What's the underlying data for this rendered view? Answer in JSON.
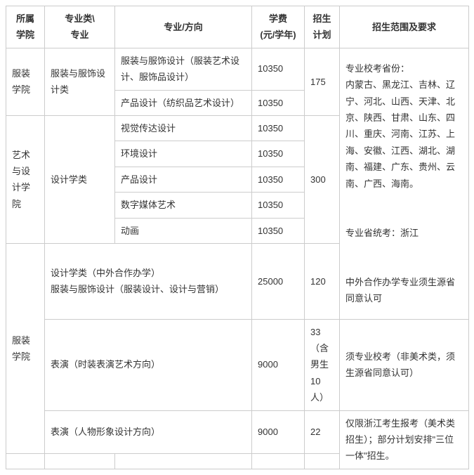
{
  "headers": {
    "college": "所属\n学院",
    "category": "专业类\\\n专业",
    "major": "专业/方向",
    "tuition": "学费\n(元/学年)",
    "quota": "招生\n计划",
    "scope": "招生范围及要求"
  },
  "rows": [
    {
      "college": "服装学院",
      "category": "服装与服饰设计类",
      "major": "服装与服饰设计（服装艺术设计、服饰品设计）",
      "tuition": "10350",
      "quota": "175"
    },
    {
      "major": "产品设计（纺织品艺术设计）",
      "tuition": "10350"
    },
    {
      "college": "艺术与设计学院",
      "category": "设计学类",
      "major": "视觉传达设计",
      "tuition": "10350",
      "quota": "300"
    },
    {
      "major": "环境设计",
      "tuition": "10350"
    },
    {
      "major": "产品设计",
      "tuition": "10350"
    },
    {
      "major": "数字媒体艺术",
      "tuition": "10350"
    },
    {
      "major": "动画",
      "tuition": "10350"
    },
    {
      "college": "服装学院",
      "category_full": "设计学类（中外合作办学）\n服装与服饰设计（服装设计、设计与营销）",
      "tuition": "25000",
      "quota": "120"
    },
    {
      "category_full": "表演（时装表演艺术方向）",
      "tuition": "9000",
      "quota": "33（含男生10人）",
      "scope": "须专业校考（非美术类，须生源省同意认可）"
    },
    {
      "category_full": "表演（人物形象设计方向）",
      "tuition": "9000",
      "quota": "22",
      "scope": "仅限浙江考生报考（美术类招生）；部分计划安排\"三位一体\"招生。"
    }
  ],
  "scope_main": "专业校考省份：\n内蒙古、黑龙江、吉林、辽宁、河北、山西、天津、北京、陕西、甘肃、山东、四川、重庆、河南、江苏、上海、安徽、江西、湖北、湖南、福建、广东、贵州、云南、广西、海南。\n\n专业省统考：浙江\n\n中外合作办学专业须生源省同意认可",
  "empty_row": {
    "c1": "",
    "c2": "",
    "c3": "",
    "c4": "",
    "c5": ""
  }
}
